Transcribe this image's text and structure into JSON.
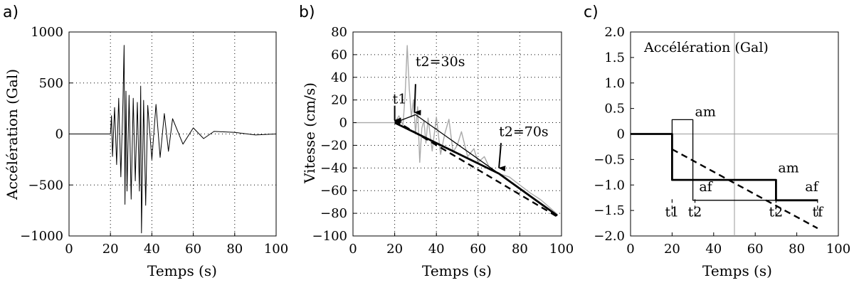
{
  "chart_data": [
    {
      "panel_label": "a)",
      "type": "line",
      "xlabel": "Temps (s)",
      "ylabel": "Accélération (Gal)",
      "xlim": [
        0,
        100
      ],
      "ylim": [
        -1000,
        1000
      ],
      "xticks": [
        0,
        20,
        40,
        60,
        80,
        100
      ],
      "xtick_labels": [
        "0",
        "20",
        "40",
        "60",
        "80",
        "100"
      ],
      "yticks": [
        1000,
        500,
        0,
        -500,
        -1000
      ],
      "ytick_labels": [
        "1000",
        "500",
        "0",
        "−500",
        "−1000"
      ],
      "grid": "dotted",
      "series": [
        {
          "color": "#000000",
          "x": [
            0,
            20,
            20.5,
            21,
            22,
            23,
            24,
            25,
            26,
            26.6,
            27,
            27.5,
            28,
            29,
            30,
            31,
            32,
            33,
            34,
            34.6,
            35,
            36,
            37,
            38,
            40,
            42,
            44,
            46,
            48,
            50,
            55,
            60,
            65,
            70,
            80,
            90,
            100
          ],
          "y": [
            0,
            0,
            180,
            -220,
            260,
            -300,
            350,
            -420,
            300,
            870,
            -690,
            420,
            -560,
            380,
            -640,
            350,
            -460,
            310,
            -560,
            470,
            -970,
            330,
            -700,
            280,
            -250,
            290,
            -230,
            200,
            -170,
            150,
            -100,
            60,
            -45,
            25,
            15,
            -10,
            0
          ]
        }
      ]
    },
    {
      "panel_label": "b)",
      "type": "line",
      "xlabel": "Temps (s)",
      "ylabel": "Vitesse (cm/s)",
      "xlim": [
        0,
        100
      ],
      "ylim": [
        -100,
        80
      ],
      "xticks": [
        0,
        20,
        40,
        60,
        80,
        100
      ],
      "xtick_labels": [
        "0",
        "20",
        "40",
        "60",
        "80",
        "100"
      ],
      "yticks": [
        80,
        60,
        40,
        20,
        0,
        -20,
        -40,
        -60,
        -80,
        -100
      ],
      "ytick_labels": [
        "80",
        "60",
        "40",
        "20",
        "0",
        "−20",
        "−40",
        "−60",
        "−80",
        "−100"
      ],
      "grid": "dotted",
      "annotations": [
        {
          "text": "t1",
          "x": 19,
          "y": 17
        },
        {
          "text": "t2=30s",
          "x": 30,
          "y": 50
        },
        {
          "text": "t2=70s",
          "x": 70,
          "y": -12
        }
      ],
      "series": [
        {
          "style": "thin-gray",
          "color": "#a9a9a9",
          "x": [
            0,
            20,
            22,
            24,
            25,
            26,
            27,
            28,
            29,
            30,
            31,
            32,
            33,
            34,
            35,
            36,
            38,
            40,
            42,
            44,
            46,
            48,
            50,
            52,
            55,
            58,
            60,
            63,
            66,
            70,
            75,
            80,
            85,
            90,
            95,
            98
          ],
          "y": [
            0,
            0,
            6,
            -2,
            25,
            68,
            30,
            5,
            20,
            -10,
            14,
            -35,
            -5,
            2,
            -18,
            4,
            -25,
            5,
            -28,
            -10,
            3,
            -26,
            -20,
            -8,
            -30,
            -23,
            -35,
            -30,
            -42,
            -45,
            -48,
            -55,
            -62,
            -68,
            -76,
            -81
          ]
        },
        {
          "style": "thin-black",
          "color": "#000000",
          "x": [
            20,
            30,
            70,
            98
          ],
          "y": [
            0,
            7,
            -45,
            -82
          ]
        },
        {
          "style": "thick-black",
          "color": "#000000",
          "x": [
            20,
            70,
            98
          ],
          "y": [
            0,
            -45,
            -82
          ]
        },
        {
          "style": "dashed-black",
          "color": "#000000",
          "x": [
            20,
            98
          ],
          "y": [
            2,
            -83
          ]
        }
      ]
    },
    {
      "panel_label": "c)",
      "type": "line",
      "xlabel": "Temps (s)",
      "xlim": [
        0,
        100
      ],
      "ylim": [
        -2.0,
        2.0
      ],
      "xticks": [
        0,
        20,
        40,
        60,
        80,
        100
      ],
      "xtick_labels": [
        "0",
        "20",
        "40",
        "60",
        "80",
        "100"
      ],
      "yticks": [
        2.0,
        1.5,
        1.0,
        0.5,
        0,
        -0.5,
        -1.0,
        -1.5,
        -2.0
      ],
      "ytick_labels": [
        "2.0",
        "1.5",
        "1.0",
        "0.5",
        "0",
        "−0.5",
        "−1.0",
        "−1.5",
        "−2.0"
      ],
      "grid": "center-cross",
      "inner_title": "Accélération (Gal)",
      "annotations": [
        {
          "text": "am",
          "x": 31,
          "y": 0.35
        },
        {
          "text": "af",
          "x": 33,
          "y": -1.12
        },
        {
          "text": "am",
          "x": 71,
          "y": -0.75
        },
        {
          "text": "af",
          "x": 84,
          "y": -1.12
        },
        {
          "text": "t1",
          "x": 20,
          "y": -1.62
        },
        {
          "text": "t2",
          "x": 31,
          "y": -1.62
        },
        {
          "text": "t2",
          "x": 70,
          "y": -1.62
        },
        {
          "text": "tf",
          "x": 90,
          "y": -1.62
        }
      ],
      "markers_x": [
        20,
        31,
        70,
        90
      ],
      "series": [
        {
          "style": "thick-black",
          "color": "#000000",
          "x": [
            0,
            20,
            20,
            70,
            70,
            90
          ],
          "y": [
            0,
            0,
            -0.9,
            -0.9,
            -1.3,
            -1.3
          ]
        },
        {
          "style": "thin-black",
          "color": "#000000",
          "x": [
            20,
            20,
            30,
            30,
            90
          ],
          "y": [
            0,
            0.28,
            0.28,
            -1.3,
            -1.3
          ]
        },
        {
          "style": "dashed-black",
          "color": "#000000",
          "x": [
            20,
            90
          ],
          "y": [
            -0.3,
            -1.85
          ]
        }
      ]
    }
  ]
}
